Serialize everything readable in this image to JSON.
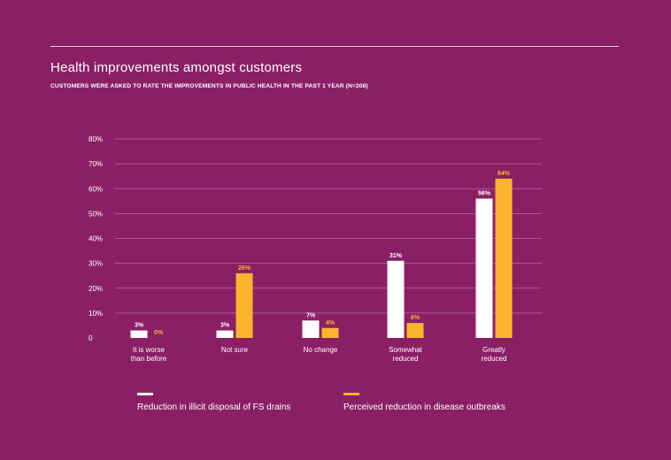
{
  "header": {
    "title": "Health improvements amongst customers",
    "subtitle": "CUSTOMERS WERE ASKED TO RATE THE IMPROVEMENTS IN PUBLIC HEALTH IN THE PAST 1 YEAR (N=208)"
  },
  "colors": {
    "background": "#8b1f66",
    "series1": "#ffffff",
    "series2": "#fbb52d",
    "grid": "#b869a0"
  },
  "chart_data": {
    "type": "bar",
    "title": "Health improvements amongst customers",
    "subtitle": "CUSTOMERS WERE ASKED TO RATE THE IMPROVEMENTS IN PUBLIC HEALTH IN THE PAST 1 YEAR (N=208)",
    "categories": [
      [
        "It is worse",
        "than before"
      ],
      [
        "Not sure"
      ],
      [
        "No change"
      ],
      [
        "Somewhat",
        "reduced"
      ],
      [
        "Greatly",
        "reduced"
      ]
    ],
    "series": [
      {
        "name": "Reduction in illicit disposal of FS drains",
        "values": [
          3,
          3,
          7,
          31,
          56
        ],
        "labels": [
          "3%",
          "3%",
          "7%",
          "31%",
          "56%"
        ]
      },
      {
        "name": "Perceived reduction in disease outbreaks",
        "values": [
          0,
          26,
          4,
          6,
          64
        ],
        "labels": [
          "0%",
          "26%",
          "4%",
          "6%",
          "64%"
        ]
      }
    ],
    "ylim": [
      0,
      80
    ],
    "yticks": [
      "0",
      "10%",
      "20%",
      "30%",
      "40%",
      "50%",
      "60%",
      "70%",
      "80%"
    ],
    "grid": true,
    "legend_position": "bottom",
    "xlabel": "",
    "ylabel": ""
  }
}
